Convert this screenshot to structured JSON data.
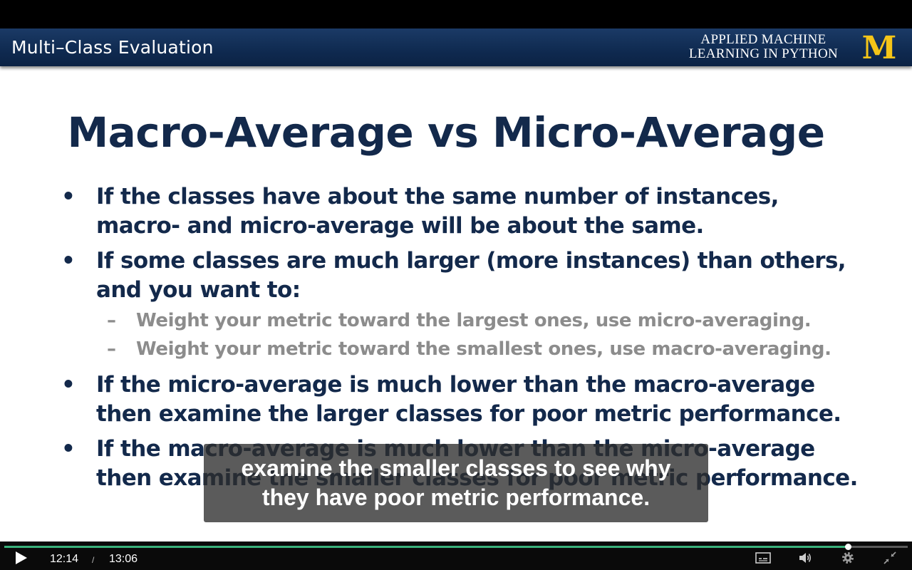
{
  "slide": {
    "banner_title": "Multi–Class Evaluation",
    "brand_line1": "APPLIED MACHINE",
    "brand_line2": "LEARNING IN PYTHON",
    "logo_text": "M",
    "title": "Macro-Average vs Micro-Average",
    "bullets": [
      {
        "mark": "•",
        "text": "If the classes have about the same number of instances, macro- and micro-average will be about the same."
      },
      {
        "mark": "•",
        "text": "If some classes are much larger (more instances) than others, and you want to:"
      },
      {
        "mark": "•",
        "text": "If the micro-average is much lower than the macro-average then examine the larger classes for poor metric performance."
      },
      {
        "mark": "•",
        "text": "If the macro-average is much lower than the micro-average then examine the smaller classes for poor metric performance."
      }
    ],
    "subbullets": [
      {
        "mark": "–",
        "text": "Weight your metric toward the largest ones, use micro-averaging."
      },
      {
        "mark": "–",
        "text": "Weight your metric toward the smallest ones, use macro-averaging."
      }
    ]
  },
  "caption": {
    "line1": "examine the smaller classes to see why",
    "line2": "they have poor metric performance."
  },
  "player": {
    "current_time": "12:14",
    "separator": "/",
    "duration": "13:06",
    "progress_fraction": 0.934,
    "icons": {
      "play": "play-icon",
      "captions": "captions-icon",
      "volume": "volume-icon",
      "settings": "gear-icon",
      "exit_fullscreen": "exit-fullscreen-icon"
    }
  },
  "colors": {
    "banner": "#0f2a50",
    "title": "#13294b",
    "subbullet": "#8c8c8c",
    "progress": "#3ab07a",
    "logo": "#f5c518"
  }
}
